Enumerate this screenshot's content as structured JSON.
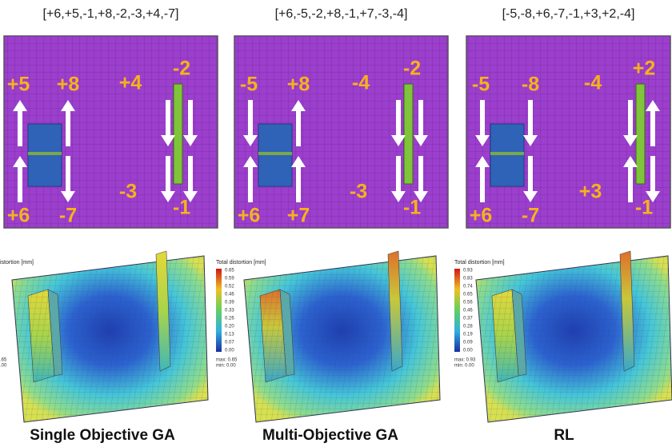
{
  "panels": [
    {
      "sequence": "[+6,+5,-1,+8,-2,-3,+4,-7]",
      "arrow_labels": [
        "+5",
        "+8",
        "+4",
        "-2",
        "+6",
        "-7",
        "-3",
        "-1"
      ],
      "legend": {
        "title": "istortion [mm]",
        "max": ".65",
        "min": ".00"
      },
      "caption": "Single Objective GA"
    },
    {
      "sequence": "[+6,-5,-2,+8,-1,+7,-3,-4]",
      "arrow_labels": [
        "-5",
        "+8",
        "-4",
        "-2",
        "+6",
        "+7",
        "-3",
        "-1"
      ],
      "legend": {
        "title": "Total distortion [mm]",
        "ticks": [
          "0.65",
          "0.59",
          "0.52",
          "0.46",
          "0.39",
          "0.33",
          "0.26",
          "0.20",
          "0.13",
          "0.07",
          "0.00"
        ],
        "max": "max: 0.65",
        "min": "min: 0.00"
      },
      "caption": "Multi-Objective GA"
    },
    {
      "sequence": "[-5,-8,+6,-7,-1,+3,+2,-4]",
      "arrow_labels": [
        "-5",
        "-8",
        "-4",
        "+2",
        "+6",
        "-7",
        "+3",
        "-1"
      ],
      "legend": {
        "title": "Total distortion [mm]",
        "ticks": [
          "0.93",
          "0.83",
          "0.74",
          "0.65",
          "0.56",
          "0.46",
          "0.37",
          "0.28",
          "0.19",
          "0.09",
          "0.00"
        ],
        "max": "max: 0.93",
        "min": "min: 0.00"
      },
      "caption": "RL"
    }
  ]
}
